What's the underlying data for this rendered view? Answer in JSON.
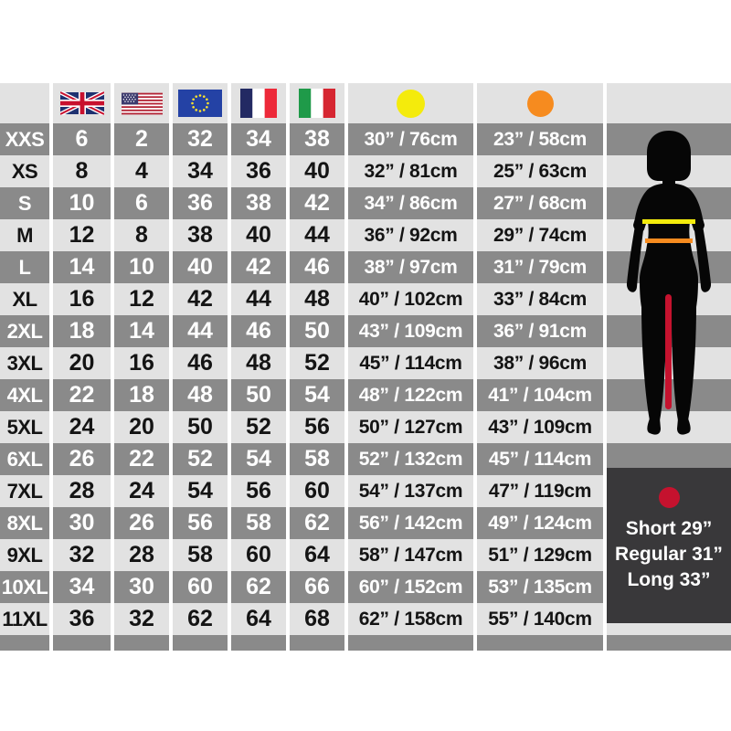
{
  "colors": {
    "row_dark": "#8a8a8a",
    "row_light": "#e2e2e2",
    "legend_bg": "#39383a",
    "chest_marker": "#f4eb0c",
    "waist_marker": "#f68b1f",
    "inseam_marker": "#c5122e",
    "silhouette": "#060606"
  },
  "header": {
    "icons": [
      "uk-flag",
      "us-flag",
      "eu-flag",
      "france-flag",
      "italy-flag",
      "chest-marker-dot",
      "waist-marker-dot"
    ]
  },
  "legend": {
    "icon": "inseam-marker-dot",
    "lines": [
      "Short 29”",
      "Regular 31”",
      "Long 33”"
    ]
  },
  "table": {
    "columns": [
      "size",
      "uk",
      "us",
      "eu",
      "fr",
      "it",
      "chest",
      "waist"
    ],
    "rows": [
      {
        "size": "XXS",
        "uk": "6",
        "us": "2",
        "eu": "32",
        "fr": "34",
        "it": "38",
        "chest": "30” / 76cm",
        "waist": "23” / 58cm"
      },
      {
        "size": "XS",
        "uk": "8",
        "us": "4",
        "eu": "34",
        "fr": "36",
        "it": "40",
        "chest": "32” / 81cm",
        "waist": "25” / 63cm"
      },
      {
        "size": "S",
        "uk": "10",
        "us": "6",
        "eu": "36",
        "fr": "38",
        "it": "42",
        "chest": "34” / 86cm",
        "waist": "27” / 68cm"
      },
      {
        "size": "M",
        "uk": "12",
        "us": "8",
        "eu": "38",
        "fr": "40",
        "it": "44",
        "chest": "36” / 92cm",
        "waist": "29” / 74cm"
      },
      {
        "size": "L",
        "uk": "14",
        "us": "10",
        "eu": "40",
        "fr": "42",
        "it": "46",
        "chest": "38” / 97cm",
        "waist": "31” / 79cm"
      },
      {
        "size": "XL",
        "uk": "16",
        "us": "12",
        "eu": "42",
        "fr": "44",
        "it": "48",
        "chest": "40” / 102cm",
        "waist": "33” / 84cm"
      },
      {
        "size": "2XL",
        "uk": "18",
        "us": "14",
        "eu": "44",
        "fr": "46",
        "it": "50",
        "chest": "43” / 109cm",
        "waist": "36” / 91cm"
      },
      {
        "size": "3XL",
        "uk": "20",
        "us": "16",
        "eu": "46",
        "fr": "48",
        "it": "52",
        "chest": "45” / 114cm",
        "waist": "38” / 96cm"
      },
      {
        "size": "4XL",
        "uk": "22",
        "us": "18",
        "eu": "48",
        "fr": "50",
        "it": "54",
        "chest": "48” / 122cm",
        "waist": "41” / 104cm"
      },
      {
        "size": "5XL",
        "uk": "24",
        "us": "20",
        "eu": "50",
        "fr": "52",
        "it": "56",
        "chest": "50” / 127cm",
        "waist": "43” / 109cm"
      },
      {
        "size": "6XL",
        "uk": "26",
        "us": "22",
        "eu": "52",
        "fr": "54",
        "it": "58",
        "chest": "52” / 132cm",
        "waist": "45” / 114cm"
      },
      {
        "size": "7XL",
        "uk": "28",
        "us": "24",
        "eu": "54",
        "fr": "56",
        "it": "60",
        "chest": "54” / 137cm",
        "waist": "47” / 119cm"
      },
      {
        "size": "8XL",
        "uk": "30",
        "us": "26",
        "eu": "56",
        "fr": "58",
        "it": "62",
        "chest": "56” / 142cm",
        "waist": "49” / 124cm"
      },
      {
        "size": "9XL",
        "uk": "32",
        "us": "28",
        "eu": "58",
        "fr": "60",
        "it": "64",
        "chest": "58” / 147cm",
        "waist": "51” / 129cm"
      },
      {
        "size": "10XL",
        "uk": "34",
        "us": "30",
        "eu": "60",
        "fr": "62",
        "it": "66",
        "chest": "60” / 152cm",
        "waist": "53” / 135cm"
      },
      {
        "size": "11XL",
        "uk": "36",
        "us": "32",
        "eu": "62",
        "fr": "64",
        "it": "68",
        "chest": "62” / 158cm",
        "waist": "55” / 140cm"
      }
    ]
  }
}
